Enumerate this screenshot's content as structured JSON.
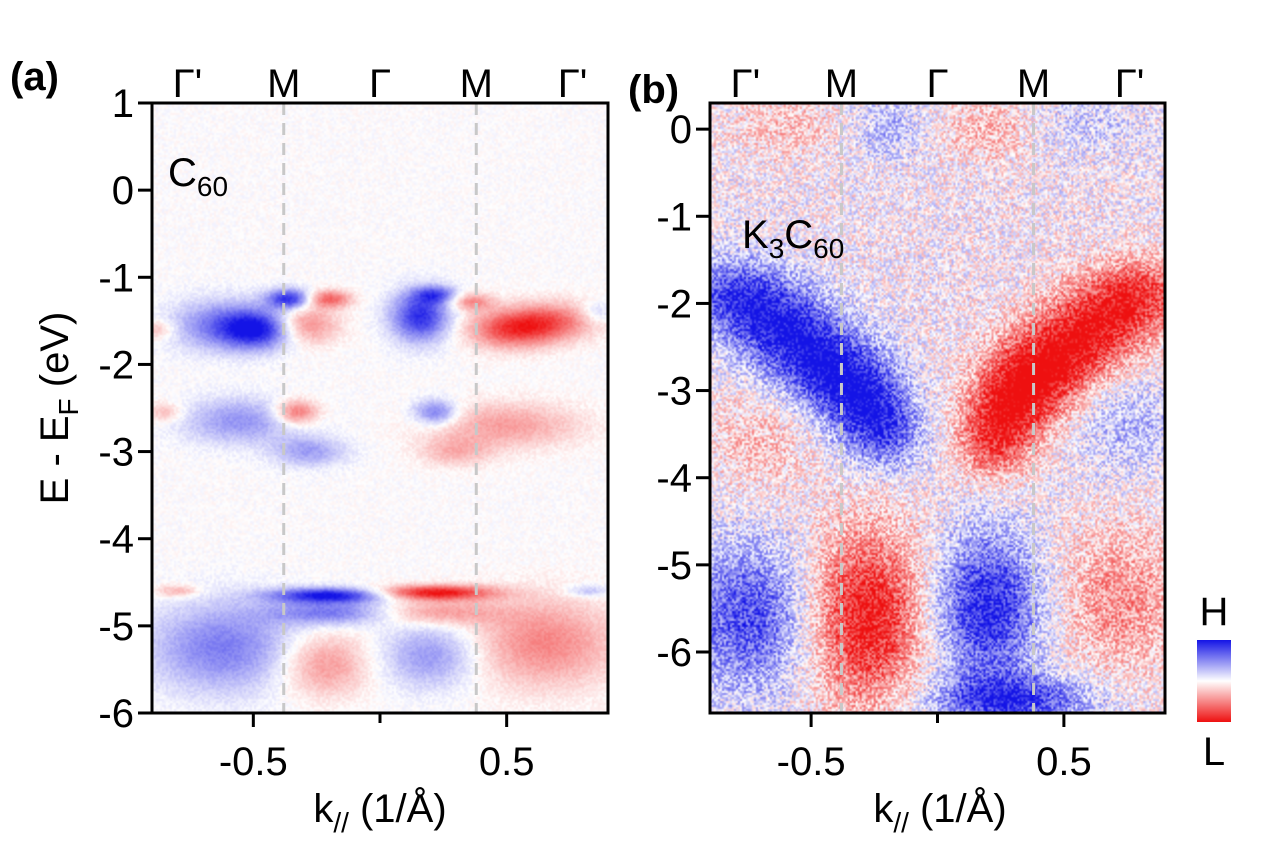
{
  "figure": {
    "colors": {
      "high": "#1414e6",
      "low": "#ee1010",
      "mid": "#ffffff",
      "guide": "#c8c8c8"
    }
  },
  "chart_data": [
    {
      "type": "heatmap",
      "panel_label": "(a)",
      "inset_label": {
        "base": "C",
        "subscript": "60"
      },
      "xlabel": {
        "base": "k",
        "subscript": "//",
        "rest": " (1/Å)"
      },
      "ylabel": {
        "base": "E - E",
        "subscript": "F",
        "rest": " (eV)"
      },
      "xlim": [
        -0.9,
        0.9
      ],
      "ylim": [
        -6,
        1
      ],
      "x_ticks": [
        -0.5,
        0.5
      ],
      "x_tick_labels": [
        "-0.5",
        "0.5"
      ],
      "x_minor_ticks": [
        0
      ],
      "y_ticks": [
        1,
        0,
        -1,
        -2,
        -3,
        -4,
        -5,
        -6
      ],
      "y_tick_labels": [
        "1",
        "0",
        "-1",
        "-2",
        "-3",
        "-4",
        "-5",
        "-6"
      ],
      "top_symmetry_points": [
        {
          "label": "Γ'",
          "k": -0.76
        },
        {
          "label": "M",
          "k": -0.38
        },
        {
          "label": "Γ",
          "k": 0.0
        },
        {
          "label": "M",
          "k": 0.38
        },
        {
          "label": "Γ'",
          "k": 0.76
        }
      ],
      "guide_lines_k": [
        -0.38,
        0.38
      ],
      "features": [
        {
          "sign": "H",
          "k": -0.62,
          "e": -1.55,
          "dk": 0.14,
          "de": 0.2,
          "amp": 0.55
        },
        {
          "sign": "H",
          "k": -0.48,
          "e": -1.6,
          "dk": 0.1,
          "de": 0.15,
          "amp": 0.85
        },
        {
          "sign": "H",
          "k": -0.36,
          "e": -1.25,
          "dk": 0.06,
          "de": 0.08,
          "amp": 0.9
        },
        {
          "sign": "L",
          "k": -0.3,
          "e": -1.55,
          "dk": 0.09,
          "de": 0.15,
          "amp": 0.55
        },
        {
          "sign": "L",
          "k": -0.2,
          "e": -1.25,
          "dk": 0.06,
          "de": 0.07,
          "amp": 0.65
        },
        {
          "sign": "H",
          "k": 0.16,
          "e": -1.45,
          "dk": 0.08,
          "de": 0.2,
          "amp": 0.9
        },
        {
          "sign": "H",
          "k": 0.22,
          "e": -1.2,
          "dk": 0.06,
          "de": 0.07,
          "amp": 0.6
        },
        {
          "sign": "L",
          "k": 0.36,
          "e": -1.28,
          "dk": 0.06,
          "de": 0.07,
          "amp": 0.5
        },
        {
          "sign": "L",
          "k": 0.52,
          "e": -1.6,
          "dk": 0.12,
          "de": 0.15,
          "amp": 0.75
        },
        {
          "sign": "L",
          "k": 0.68,
          "e": -1.5,
          "dk": 0.12,
          "de": 0.15,
          "amp": 0.55
        },
        {
          "sign": "L",
          "k": -0.88,
          "e": -1.6,
          "dk": 0.05,
          "de": 0.08,
          "amp": 0.3
        },
        {
          "sign": "H",
          "k": 0.86,
          "e": -1.4,
          "dk": 0.05,
          "de": 0.08,
          "amp": 0.25
        },
        {
          "sign": "H",
          "k": -0.55,
          "e": -2.65,
          "dk": 0.16,
          "de": 0.18,
          "amp": 0.45
        },
        {
          "sign": "H",
          "k": -0.28,
          "e": -3.0,
          "dk": 0.1,
          "de": 0.12,
          "amp": 0.4
        },
        {
          "sign": "L",
          "k": -0.33,
          "e": -2.55,
          "dk": 0.06,
          "de": 0.1,
          "amp": 0.65
        },
        {
          "sign": "H",
          "k": 0.22,
          "e": -2.55,
          "dk": 0.06,
          "de": 0.1,
          "amp": 0.6
        },
        {
          "sign": "L",
          "k": 0.5,
          "e": -2.7,
          "dk": 0.2,
          "de": 0.18,
          "amp": 0.4
        },
        {
          "sign": "L",
          "k": 0.3,
          "e": -3.0,
          "dk": 0.1,
          "de": 0.12,
          "amp": 0.3
        },
        {
          "sign": "L",
          "k": -0.85,
          "e": -2.55,
          "dk": 0.05,
          "de": 0.08,
          "amp": 0.3
        },
        {
          "sign": "H",
          "k": -0.2,
          "e": -4.65,
          "dk": 0.16,
          "de": 0.06,
          "amp": 1.0
        },
        {
          "sign": "L",
          "k": 0.22,
          "e": -4.62,
          "dk": 0.16,
          "de": 0.06,
          "amp": 1.0
        },
        {
          "sign": "H",
          "k": -0.18,
          "e": -4.85,
          "dk": 0.18,
          "de": 0.1,
          "amp": 0.6
        },
        {
          "sign": "L",
          "k": 0.2,
          "e": -4.85,
          "dk": 0.18,
          "de": 0.1,
          "amp": 0.45
        },
        {
          "sign": "H",
          "k": -0.62,
          "e": -5.25,
          "dk": 0.2,
          "de": 0.35,
          "amp": 0.55
        },
        {
          "sign": "L",
          "k": -0.22,
          "e": -5.45,
          "dk": 0.12,
          "de": 0.25,
          "amp": 0.45
        },
        {
          "sign": "H",
          "k": 0.2,
          "e": -5.35,
          "dk": 0.13,
          "de": 0.25,
          "amp": 0.45
        },
        {
          "sign": "L",
          "k": 0.65,
          "e": -5.2,
          "dk": 0.2,
          "de": 0.35,
          "amp": 0.5
        },
        {
          "sign": "L",
          "k": -0.8,
          "e": -4.6,
          "dk": 0.06,
          "de": 0.05,
          "amp": 0.35
        },
        {
          "sign": "H",
          "k": 0.82,
          "e": -4.6,
          "dk": 0.06,
          "de": 0.05,
          "amp": 0.3
        }
      ]
    },
    {
      "type": "heatmap",
      "panel_label": "(b)",
      "inset_label": {
        "base": "K",
        "sub1": "3",
        "base2": "C",
        "sub2": "60"
      },
      "xlabel": {
        "base": "k",
        "subscript": "//",
        "rest": " (1/Å)"
      },
      "xlim": [
        -0.9,
        0.9
      ],
      "ylim": [
        -6.7,
        0.3
      ],
      "x_ticks": [
        -0.5,
        0.5
      ],
      "x_tick_labels": [
        "-0.5",
        "0.5"
      ],
      "x_minor_ticks": [
        0
      ],
      "y_ticks": [
        0,
        -1,
        -2,
        -3,
        -4,
        -5,
        -6
      ],
      "y_tick_labels": [
        "0",
        "-1",
        "-2",
        "-3",
        "-4",
        "-5",
        "-6"
      ],
      "top_symmetry_points": [
        {
          "label": "Γ'",
          "k": -0.76
        },
        {
          "label": "M",
          "k": -0.38
        },
        {
          "label": "Γ",
          "k": 0.0
        },
        {
          "label": "M",
          "k": 0.38
        },
        {
          "label": "Γ'",
          "k": 0.76
        }
      ],
      "guide_lines_k": [
        -0.38,
        0.38
      ],
      "features": [
        {
          "sign": "L",
          "k": -0.6,
          "e": 0.05,
          "dk": 0.15,
          "de": 0.25,
          "amp": 0.25
        },
        {
          "sign": "H",
          "k": -0.2,
          "e": 0.0,
          "dk": 0.1,
          "de": 0.25,
          "amp": 0.3
        },
        {
          "sign": "L",
          "k": 0.2,
          "e": 0.0,
          "dk": 0.12,
          "de": 0.25,
          "amp": 0.3
        },
        {
          "sign": "H",
          "k": 0.6,
          "e": 0.05,
          "dk": 0.15,
          "de": 0.25,
          "amp": 0.2
        },
        {
          "sign": "H",
          "k": -0.8,
          "e": -1.9,
          "dk": 0.14,
          "de": 0.3,
          "amp": 0.75
        },
        {
          "sign": "H",
          "k": -0.62,
          "e": -2.3,
          "dk": 0.14,
          "de": 0.35,
          "amp": 0.8
        },
        {
          "sign": "H",
          "k": -0.44,
          "e": -2.7,
          "dk": 0.13,
          "de": 0.35,
          "amp": 0.8
        },
        {
          "sign": "H",
          "k": -0.3,
          "e": -3.1,
          "dk": 0.12,
          "de": 0.35,
          "amp": 0.8
        },
        {
          "sign": "H",
          "k": -0.2,
          "e": -3.5,
          "dk": 0.1,
          "de": 0.3,
          "amp": 0.6
        },
        {
          "sign": "L",
          "k": 0.8,
          "e": -1.9,
          "dk": 0.14,
          "de": 0.3,
          "amp": 0.75
        },
        {
          "sign": "L",
          "k": 0.62,
          "e": -2.3,
          "dk": 0.14,
          "de": 0.35,
          "amp": 0.8
        },
        {
          "sign": "L",
          "k": 0.44,
          "e": -2.7,
          "dk": 0.13,
          "de": 0.35,
          "amp": 0.85
        },
        {
          "sign": "L",
          "k": 0.3,
          "e": -3.1,
          "dk": 0.12,
          "de": 0.35,
          "amp": 0.9
        },
        {
          "sign": "L",
          "k": 0.22,
          "e": -3.6,
          "dk": 0.1,
          "de": 0.3,
          "amp": 0.65
        },
        {
          "sign": "L",
          "k": -0.7,
          "e": -3.6,
          "dk": 0.15,
          "de": 0.4,
          "amp": 0.25
        },
        {
          "sign": "H",
          "k": 0.75,
          "e": -3.4,
          "dk": 0.15,
          "de": 0.4,
          "amp": 0.3
        },
        {
          "sign": "H",
          "k": -0.75,
          "e": -5.6,
          "dk": 0.18,
          "de": 0.6,
          "amp": 0.75
        },
        {
          "sign": "L",
          "k": -0.28,
          "e": -5.6,
          "dk": 0.16,
          "de": 0.7,
          "amp": 1.0
        },
        {
          "sign": "H",
          "k": 0.2,
          "e": -5.5,
          "dk": 0.15,
          "de": 0.6,
          "amp": 0.95
        },
        {
          "sign": "H",
          "k": 0.3,
          "e": -6.55,
          "dk": 0.22,
          "de": 0.2,
          "amp": 0.85
        },
        {
          "sign": "L",
          "k": 0.72,
          "e": -5.4,
          "dk": 0.18,
          "de": 0.6,
          "amp": 0.45
        }
      ]
    }
  ],
  "colorbar": {
    "top_label": "H",
    "bottom_label": "L"
  }
}
